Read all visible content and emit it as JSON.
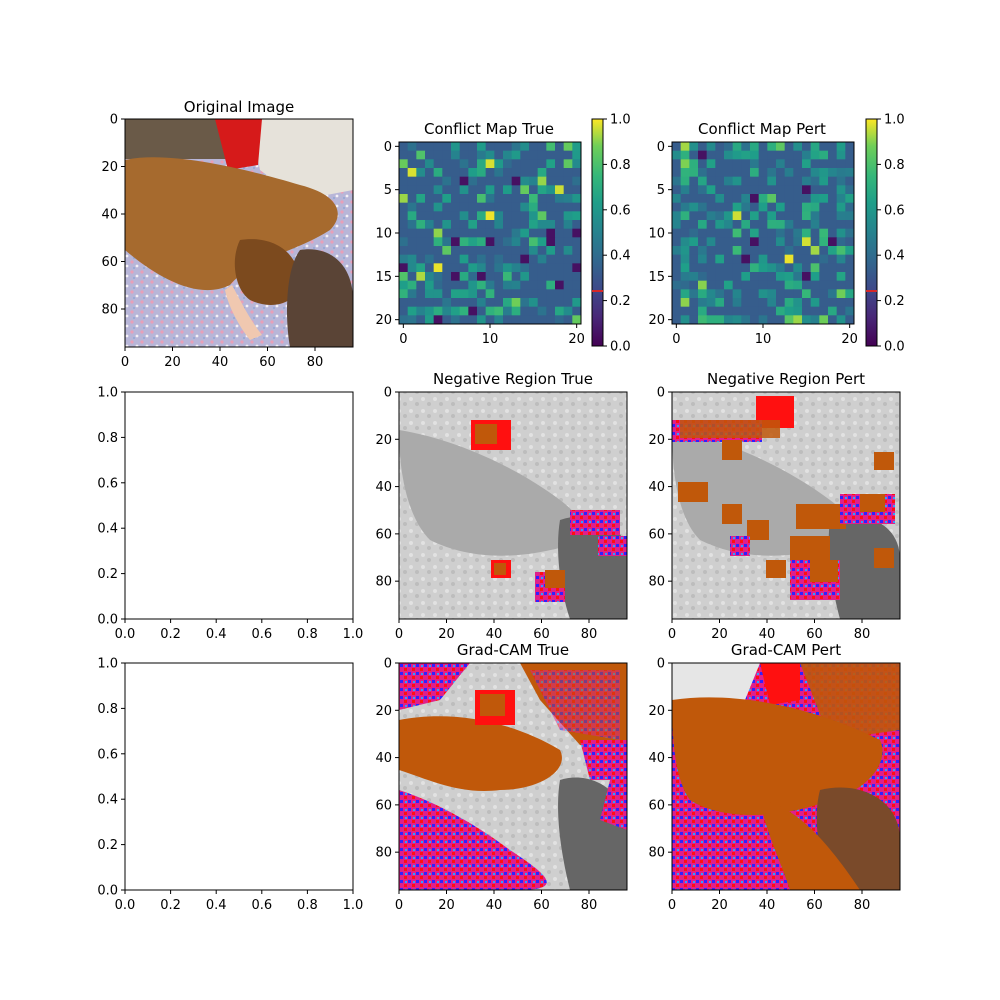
{
  "chart_data": [
    {
      "type": "image",
      "title": "Original Image",
      "content": "photo",
      "xticks": [
        "0",
        "20",
        "40",
        "60",
        "80"
      ],
      "yticks": [
        "0",
        "20",
        "40",
        "60",
        "80"
      ],
      "xlim": [
        0,
        96
      ],
      "ylim": [
        96,
        0
      ]
    },
    {
      "type": "heatmap",
      "title": "Conflict Map True",
      "grid": [
        21,
        21
      ],
      "xticks": [
        "0",
        "10",
        "20"
      ],
      "yticks": [
        "0",
        "5",
        "10",
        "15",
        "20"
      ],
      "colorbar": {
        "min": 0.0,
        "max": 1.0,
        "ticks": [
          "0.0",
          "0.2",
          "0.4",
          "0.6",
          "0.8",
          "1.0"
        ],
        "marker": 0.24,
        "colormap": "viridis"
      }
    },
    {
      "type": "heatmap",
      "title": "Conflict Map Pert",
      "grid": [
        21,
        21
      ],
      "xticks": [
        "0",
        "10",
        "20"
      ],
      "yticks": [
        "0",
        "5",
        "10",
        "15",
        "20"
      ],
      "colorbar": {
        "min": 0.0,
        "max": 1.0,
        "ticks": [
          "0.0",
          "0.2",
          "0.4",
          "0.6",
          "0.8",
          "1.0"
        ],
        "marker": 0.24,
        "colormap": "viridis"
      }
    },
    {
      "type": "empty",
      "xlim": [
        0,
        1
      ],
      "ylim": [
        0,
        1
      ],
      "xticks": [
        "0.0",
        "0.2",
        "0.4",
        "0.6",
        "0.8",
        "1.0"
      ],
      "yticks": [
        "0.0",
        "0.2",
        "0.4",
        "0.6",
        "0.8",
        "1.0"
      ]
    },
    {
      "type": "image",
      "title": "Negative Region True",
      "content": "overlay",
      "xticks": [
        "0",
        "20",
        "40",
        "60",
        "80"
      ],
      "yticks": [
        "0",
        "20",
        "40",
        "60",
        "80"
      ]
    },
    {
      "type": "image",
      "title": "Negative Region Pert",
      "content": "overlay",
      "xticks": [
        "0",
        "20",
        "40",
        "60",
        "80"
      ],
      "yticks": [
        "0",
        "20",
        "40",
        "60",
        "80"
      ]
    },
    {
      "type": "empty",
      "xlim": [
        0,
        1
      ],
      "ylim": [
        0,
        1
      ],
      "xticks": [
        "0.0",
        "0.2",
        "0.4",
        "0.6",
        "0.8",
        "1.0"
      ],
      "yticks": [
        "0.0",
        "0.2",
        "0.4",
        "0.6",
        "0.8",
        "1.0"
      ]
    },
    {
      "type": "image",
      "title": "Grad-CAM True",
      "content": "overlay",
      "xticks": [
        "0",
        "20",
        "40",
        "60",
        "80"
      ],
      "yticks": [
        "0",
        "20",
        "40",
        "60",
        "80"
      ]
    },
    {
      "type": "image",
      "title": "Grad-CAM Pert",
      "content": "overlay",
      "xticks": [
        "0",
        "20",
        "40",
        "60",
        "80"
      ],
      "yticks": [
        "0",
        "20",
        "40",
        "60",
        "80"
      ]
    }
  ],
  "colors": {
    "overlay_orange": "#c0580a",
    "overlay_red": "#ff1010",
    "overlay_blue": "#3020ff",
    "overlay_magenta": "#e0208a",
    "marker_red": "#d62728"
  }
}
